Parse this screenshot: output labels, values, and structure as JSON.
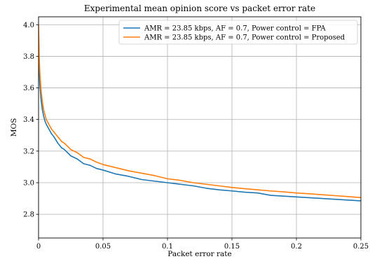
{
  "chart_data": {
    "type": "line",
    "title": "Experimental mean opinion score vs packet error rate",
    "xlabel": "Packet error rate",
    "ylabel": "MOS",
    "xlim": [
      0,
      0.25
    ],
    "ylim": [
      2.65,
      4.05
    ],
    "grid": true,
    "legend_position": "top-right",
    "x_ticks": [
      0,
      0.05,
      0.1,
      0.15,
      0.2,
      0.25
    ],
    "x_tick_labels": [
      "0",
      "0.05",
      "0.1",
      "0.15",
      "0.2",
      "0.25"
    ],
    "y_ticks": [
      2.8,
      3.0,
      3.2,
      3.4,
      3.6,
      3.8,
      4.0
    ],
    "y_tick_labels": [
      "2.8",
      "3.0",
      "3.2",
      "3.4",
      "3.6",
      "3.8",
      "4.0"
    ],
    "series": [
      {
        "name": "AMR = 23.85 kbps, AF = 0.7, Power control = FPA",
        "color": "#1f77b4",
        "x": [
          0,
          0.0005,
          0.001,
          0.002,
          0.003,
          0.004,
          0.005,
          0.006,
          0.008,
          0.01,
          0.012,
          0.015,
          0.018,
          0.02,
          0.025,
          0.03,
          0.035,
          0.04,
          0.045,
          0.05,
          0.06,
          0.07,
          0.08,
          0.09,
          0.1,
          0.11,
          0.12,
          0.13,
          0.14,
          0.15,
          0.16,
          0.17,
          0.18,
          0.19,
          0.2,
          0.21,
          0.22,
          0.23,
          0.24,
          0.25
        ],
        "values": [
          3.9,
          3.72,
          3.62,
          3.52,
          3.46,
          3.42,
          3.39,
          3.37,
          3.34,
          3.31,
          3.29,
          3.25,
          3.22,
          3.21,
          3.17,
          3.15,
          3.12,
          3.11,
          3.09,
          3.08,
          3.055,
          3.04,
          3.02,
          3.01,
          3.0,
          2.99,
          2.98,
          2.965,
          2.955,
          2.948,
          2.94,
          2.935,
          2.92,
          2.915,
          2.91,
          2.905,
          2.9,
          2.895,
          2.89,
          2.885
        ]
      },
      {
        "name": "AMR = 23.85 kbps, AF = 0.7, Power control = Proposed",
        "color": "#ff7f0e",
        "x": [
          0,
          0.0005,
          0.001,
          0.002,
          0.003,
          0.004,
          0.005,
          0.006,
          0.008,
          0.01,
          0.012,
          0.015,
          0.018,
          0.02,
          0.025,
          0.03,
          0.035,
          0.04,
          0.045,
          0.05,
          0.06,
          0.07,
          0.08,
          0.09,
          0.1,
          0.11,
          0.12,
          0.13,
          0.14,
          0.15,
          0.16,
          0.17,
          0.18,
          0.19,
          0.2,
          0.21,
          0.22,
          0.23,
          0.24,
          0.25
        ],
        "values": [
          4.0,
          3.8,
          3.7,
          3.58,
          3.51,
          3.46,
          3.43,
          3.4,
          3.37,
          3.34,
          3.32,
          3.29,
          3.26,
          3.25,
          3.21,
          3.19,
          3.16,
          3.15,
          3.13,
          3.115,
          3.095,
          3.075,
          3.06,
          3.045,
          3.025,
          3.015,
          3.0,
          2.99,
          2.98,
          2.97,
          2.962,
          2.955,
          2.948,
          2.942,
          2.935,
          2.93,
          2.924,
          2.918,
          2.912,
          2.906
        ]
      }
    ]
  }
}
